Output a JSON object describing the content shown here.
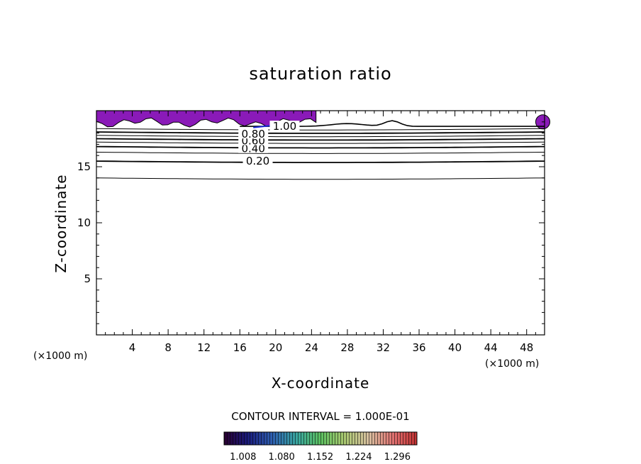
{
  "chart_data": {
    "type": "contour",
    "title": "saturation ratio",
    "xlabel": "X-coordinate",
    "ylabel": "Z-coordinate",
    "x_unit": "(×1000 m)",
    "z_unit": "(×1000 m)",
    "xlim": [
      0,
      50
    ],
    "ylim": [
      0,
      20
    ],
    "x_ticks": [
      4,
      8,
      12,
      16,
      20,
      24,
      28,
      32,
      36,
      40,
      44,
      48
    ],
    "y_ticks": [
      5,
      10,
      15
    ],
    "contour_interval_label": "CONTOUR INTERVAL = 1.000E-01",
    "contour_levels": [
      {
        "value": 0.1,
        "z": 14.0
      },
      {
        "value": 0.2,
        "z": 15.5
      },
      {
        "value": 0.3,
        "z": 16.3
      },
      {
        "value": 0.4,
        "z": 16.8
      },
      {
        "value": 0.5,
        "z": 17.2
      },
      {
        "value": 0.6,
        "z": 17.5
      },
      {
        "value": 0.7,
        "z": 17.8
      },
      {
        "value": 0.8,
        "z": 18.1
      },
      {
        "value": 0.9,
        "z": 18.4
      }
    ],
    "contour_labels": [
      {
        "text": "0.20",
        "x": 18.0,
        "z": 15.5
      },
      {
        "text": "0.40",
        "x": 17.5,
        "z": 16.6
      },
      {
        "text": "0.60",
        "x": 17.5,
        "z": 17.3
      },
      {
        "text": "0.80",
        "x": 17.5,
        "z": 17.9
      },
      {
        "text": "1.00",
        "x": 21.0,
        "z": 18.6
      }
    ],
    "shaded_region": {
      "description": "supersaturation > 1.0",
      "x_start": 0,
      "x_end": 24.5,
      "z_bottom": 18.6,
      "z_top": 20
    },
    "colorbar": {
      "tick_labels": [
        "1.008",
        "1.080",
        "1.152",
        "1.224",
        "1.296"
      ],
      "colors": [
        "#2a0030",
        "#1a1a7a",
        "#2e5fb0",
        "#3aa8a0",
        "#5cc060",
        "#a8c870",
        "#d8c0a0",
        "#e07070",
        "#c03030"
      ]
    },
    "colors": {
      "fill": "#8a1ab8",
      "contour": "#000000",
      "highlight_contour": "#1a2ad8"
    }
  }
}
